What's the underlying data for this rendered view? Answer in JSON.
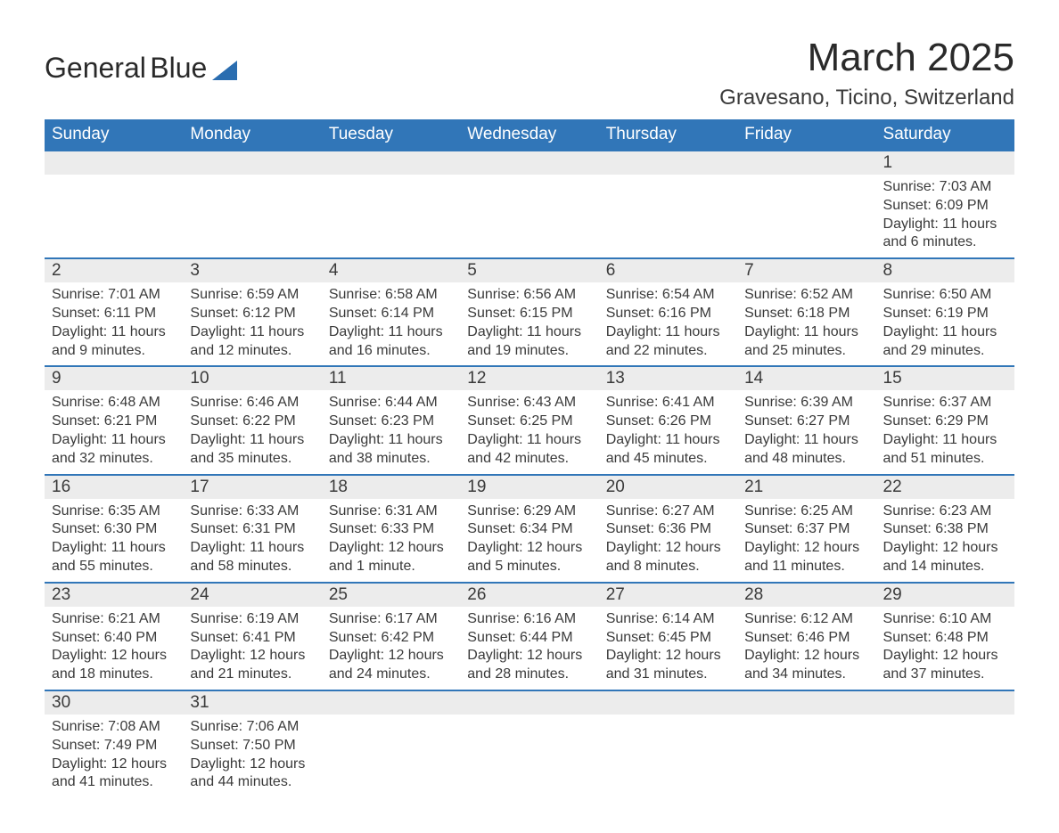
{
  "logo": {
    "text1": "General",
    "text2": "Blue"
  },
  "title": "March 2025",
  "location": "Gravesano, Ticino, Switzerland",
  "colors": {
    "header_bg": "#3176b8",
    "header_text": "#ffffff",
    "daynum_bg": "#ececec",
    "row_divider": "#3176b8",
    "text": "#3a3a3a",
    "logo_blue": "#2a6db0",
    "background": "#ffffff"
  },
  "typography": {
    "title_fontsize": 44,
    "location_fontsize": 24,
    "header_fontsize": 19,
    "daynum_fontsize": 19,
    "detail_fontsize": 16,
    "font_family": "Arial"
  },
  "layout": {
    "columns": 7,
    "week_rows": 6,
    "first_day_column": 6
  },
  "day_headers": [
    "Sunday",
    "Monday",
    "Tuesday",
    "Wednesday",
    "Thursday",
    "Friday",
    "Saturday"
  ],
  "weeks": [
    [
      null,
      null,
      null,
      null,
      null,
      null,
      {
        "n": "1",
        "sunrise": "Sunrise: 7:03 AM",
        "sunset": "Sunset: 6:09 PM",
        "daylight": "Daylight: 11 hours and 6 minutes."
      }
    ],
    [
      {
        "n": "2",
        "sunrise": "Sunrise: 7:01 AM",
        "sunset": "Sunset: 6:11 PM",
        "daylight": "Daylight: 11 hours and 9 minutes."
      },
      {
        "n": "3",
        "sunrise": "Sunrise: 6:59 AM",
        "sunset": "Sunset: 6:12 PM",
        "daylight": "Daylight: 11 hours and 12 minutes."
      },
      {
        "n": "4",
        "sunrise": "Sunrise: 6:58 AM",
        "sunset": "Sunset: 6:14 PM",
        "daylight": "Daylight: 11 hours and 16 minutes."
      },
      {
        "n": "5",
        "sunrise": "Sunrise: 6:56 AM",
        "sunset": "Sunset: 6:15 PM",
        "daylight": "Daylight: 11 hours and 19 minutes."
      },
      {
        "n": "6",
        "sunrise": "Sunrise: 6:54 AM",
        "sunset": "Sunset: 6:16 PM",
        "daylight": "Daylight: 11 hours and 22 minutes."
      },
      {
        "n": "7",
        "sunrise": "Sunrise: 6:52 AM",
        "sunset": "Sunset: 6:18 PM",
        "daylight": "Daylight: 11 hours and 25 minutes."
      },
      {
        "n": "8",
        "sunrise": "Sunrise: 6:50 AM",
        "sunset": "Sunset: 6:19 PM",
        "daylight": "Daylight: 11 hours and 29 minutes."
      }
    ],
    [
      {
        "n": "9",
        "sunrise": "Sunrise: 6:48 AM",
        "sunset": "Sunset: 6:21 PM",
        "daylight": "Daylight: 11 hours and 32 minutes."
      },
      {
        "n": "10",
        "sunrise": "Sunrise: 6:46 AM",
        "sunset": "Sunset: 6:22 PM",
        "daylight": "Daylight: 11 hours and 35 minutes."
      },
      {
        "n": "11",
        "sunrise": "Sunrise: 6:44 AM",
        "sunset": "Sunset: 6:23 PM",
        "daylight": "Daylight: 11 hours and 38 minutes."
      },
      {
        "n": "12",
        "sunrise": "Sunrise: 6:43 AM",
        "sunset": "Sunset: 6:25 PM",
        "daylight": "Daylight: 11 hours and 42 minutes."
      },
      {
        "n": "13",
        "sunrise": "Sunrise: 6:41 AM",
        "sunset": "Sunset: 6:26 PM",
        "daylight": "Daylight: 11 hours and 45 minutes."
      },
      {
        "n": "14",
        "sunrise": "Sunrise: 6:39 AM",
        "sunset": "Sunset: 6:27 PM",
        "daylight": "Daylight: 11 hours and 48 minutes."
      },
      {
        "n": "15",
        "sunrise": "Sunrise: 6:37 AM",
        "sunset": "Sunset: 6:29 PM",
        "daylight": "Daylight: 11 hours and 51 minutes."
      }
    ],
    [
      {
        "n": "16",
        "sunrise": "Sunrise: 6:35 AM",
        "sunset": "Sunset: 6:30 PM",
        "daylight": "Daylight: 11 hours and 55 minutes."
      },
      {
        "n": "17",
        "sunrise": "Sunrise: 6:33 AM",
        "sunset": "Sunset: 6:31 PM",
        "daylight": "Daylight: 11 hours and 58 minutes."
      },
      {
        "n": "18",
        "sunrise": "Sunrise: 6:31 AM",
        "sunset": "Sunset: 6:33 PM",
        "daylight": "Daylight: 12 hours and 1 minute."
      },
      {
        "n": "19",
        "sunrise": "Sunrise: 6:29 AM",
        "sunset": "Sunset: 6:34 PM",
        "daylight": "Daylight: 12 hours and 5 minutes."
      },
      {
        "n": "20",
        "sunrise": "Sunrise: 6:27 AM",
        "sunset": "Sunset: 6:36 PM",
        "daylight": "Daylight: 12 hours and 8 minutes."
      },
      {
        "n": "21",
        "sunrise": "Sunrise: 6:25 AM",
        "sunset": "Sunset: 6:37 PM",
        "daylight": "Daylight: 12 hours and 11 minutes."
      },
      {
        "n": "22",
        "sunrise": "Sunrise: 6:23 AM",
        "sunset": "Sunset: 6:38 PM",
        "daylight": "Daylight: 12 hours and 14 minutes."
      }
    ],
    [
      {
        "n": "23",
        "sunrise": "Sunrise: 6:21 AM",
        "sunset": "Sunset: 6:40 PM",
        "daylight": "Daylight: 12 hours and 18 minutes."
      },
      {
        "n": "24",
        "sunrise": "Sunrise: 6:19 AM",
        "sunset": "Sunset: 6:41 PM",
        "daylight": "Daylight: 12 hours and 21 minutes."
      },
      {
        "n": "25",
        "sunrise": "Sunrise: 6:17 AM",
        "sunset": "Sunset: 6:42 PM",
        "daylight": "Daylight: 12 hours and 24 minutes."
      },
      {
        "n": "26",
        "sunrise": "Sunrise: 6:16 AM",
        "sunset": "Sunset: 6:44 PM",
        "daylight": "Daylight: 12 hours and 28 minutes."
      },
      {
        "n": "27",
        "sunrise": "Sunrise: 6:14 AM",
        "sunset": "Sunset: 6:45 PM",
        "daylight": "Daylight: 12 hours and 31 minutes."
      },
      {
        "n": "28",
        "sunrise": "Sunrise: 6:12 AM",
        "sunset": "Sunset: 6:46 PM",
        "daylight": "Daylight: 12 hours and 34 minutes."
      },
      {
        "n": "29",
        "sunrise": "Sunrise: 6:10 AM",
        "sunset": "Sunset: 6:48 PM",
        "daylight": "Daylight: 12 hours and 37 minutes."
      }
    ],
    [
      {
        "n": "30",
        "sunrise": "Sunrise: 7:08 AM",
        "sunset": "Sunset: 7:49 PM",
        "daylight": "Daylight: 12 hours and 41 minutes."
      },
      {
        "n": "31",
        "sunrise": "Sunrise: 7:06 AM",
        "sunset": "Sunset: 7:50 PM",
        "daylight": "Daylight: 12 hours and 44 minutes."
      },
      null,
      null,
      null,
      null,
      null
    ]
  ]
}
